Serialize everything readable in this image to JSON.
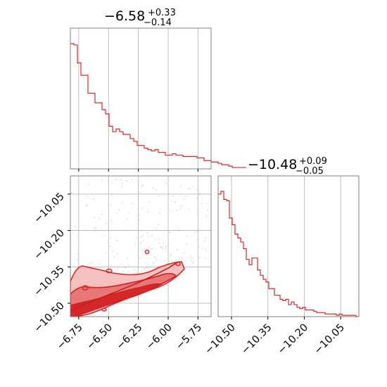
{
  "chart_data": [
    {
      "type": "histogram",
      "panel": "top-left",
      "title_value": "−6.58",
      "title_plus": "+0.33",
      "title_minus": "−0.14",
      "color": "#d62728",
      "grid": true,
      "xlim": [
        -6.82,
        -5.64
      ],
      "xticks": [
        -6.75,
        -6.5,
        -6.25,
        -6.0,
        -5.75
      ],
      "bins": {
        "start": -6.82,
        "width": 0.0295,
        "counts": [
          91,
          90,
          77,
          68,
          68,
          55,
          55,
          48,
          48,
          43,
          40,
          31,
          27,
          29,
          27,
          25,
          25,
          22,
          20,
          17,
          17,
          15,
          14,
          13,
          14,
          12,
          12,
          10,
          10,
          11,
          10,
          10,
          9,
          9,
          9,
          9,
          8,
          8,
          6,
          6,
          5,
          5,
          4,
          3,
          3,
          2,
          1,
          1,
          1,
          1
        ]
      }
    },
    {
      "type": "histogram",
      "panel": "bottom-right",
      "title_value": "−10.48",
      "title_plus": "+0.09",
      "title_minus": "−0.05",
      "color": "#d62728",
      "grid": true,
      "xlim": [
        -10.555,
        -9.975
      ],
      "xticks": [
        -10.5,
        -10.35,
        -10.2,
        -10.05
      ],
      "xtick_labels": [
        "−10.50",
        "−10.35",
        "−10.20",
        "−10.05"
      ],
      "bins": {
        "start": -10.555,
        "width": 0.0116,
        "counts": [
          92,
          94,
          88,
          87,
          74,
          69,
          62,
          59,
          56,
          51,
          43,
          39,
          44,
          44,
          35,
          31,
          28,
          26,
          21,
          21,
          16,
          16,
          13,
          12,
          13,
          9,
          11,
          9,
          7,
          6,
          7,
          5,
          5,
          5,
          4,
          3,
          3,
          3,
          2,
          2,
          2,
          2,
          1,
          2,
          1,
          1,
          1,
          1,
          1,
          0
        ]
      }
    },
    {
      "type": "contour",
      "panel": "bottom-left",
      "color": "#d62728",
      "grid": true,
      "xlim": [
        -6.82,
        -5.64
      ],
      "ylim": [
        -10.555,
        -9.975
      ],
      "xticks": [
        -6.75,
        -6.5,
        -6.25,
        -6.0,
        -5.75
      ],
      "xtick_labels": [
        "−6.75",
        "−6.50",
        "−6.25",
        "−6.00",
        "−5.75"
      ],
      "yticks": [
        -10.05,
        -10.2,
        -10.35,
        -10.5
      ],
      "ytick_labels": [
        "−10.05",
        "−10.20",
        "−10.35",
        "−10.50"
      ],
      "density_ridge": {
        "x": [
          -6.82,
          -6.7,
          -6.55,
          -6.4,
          -6.25,
          -6.1,
          -6.0,
          -5.92
        ],
        "y": [
          -10.53,
          -10.505,
          -10.475,
          -10.445,
          -10.415,
          -10.38,
          -10.355,
          -10.33
        ]
      }
    }
  ]
}
